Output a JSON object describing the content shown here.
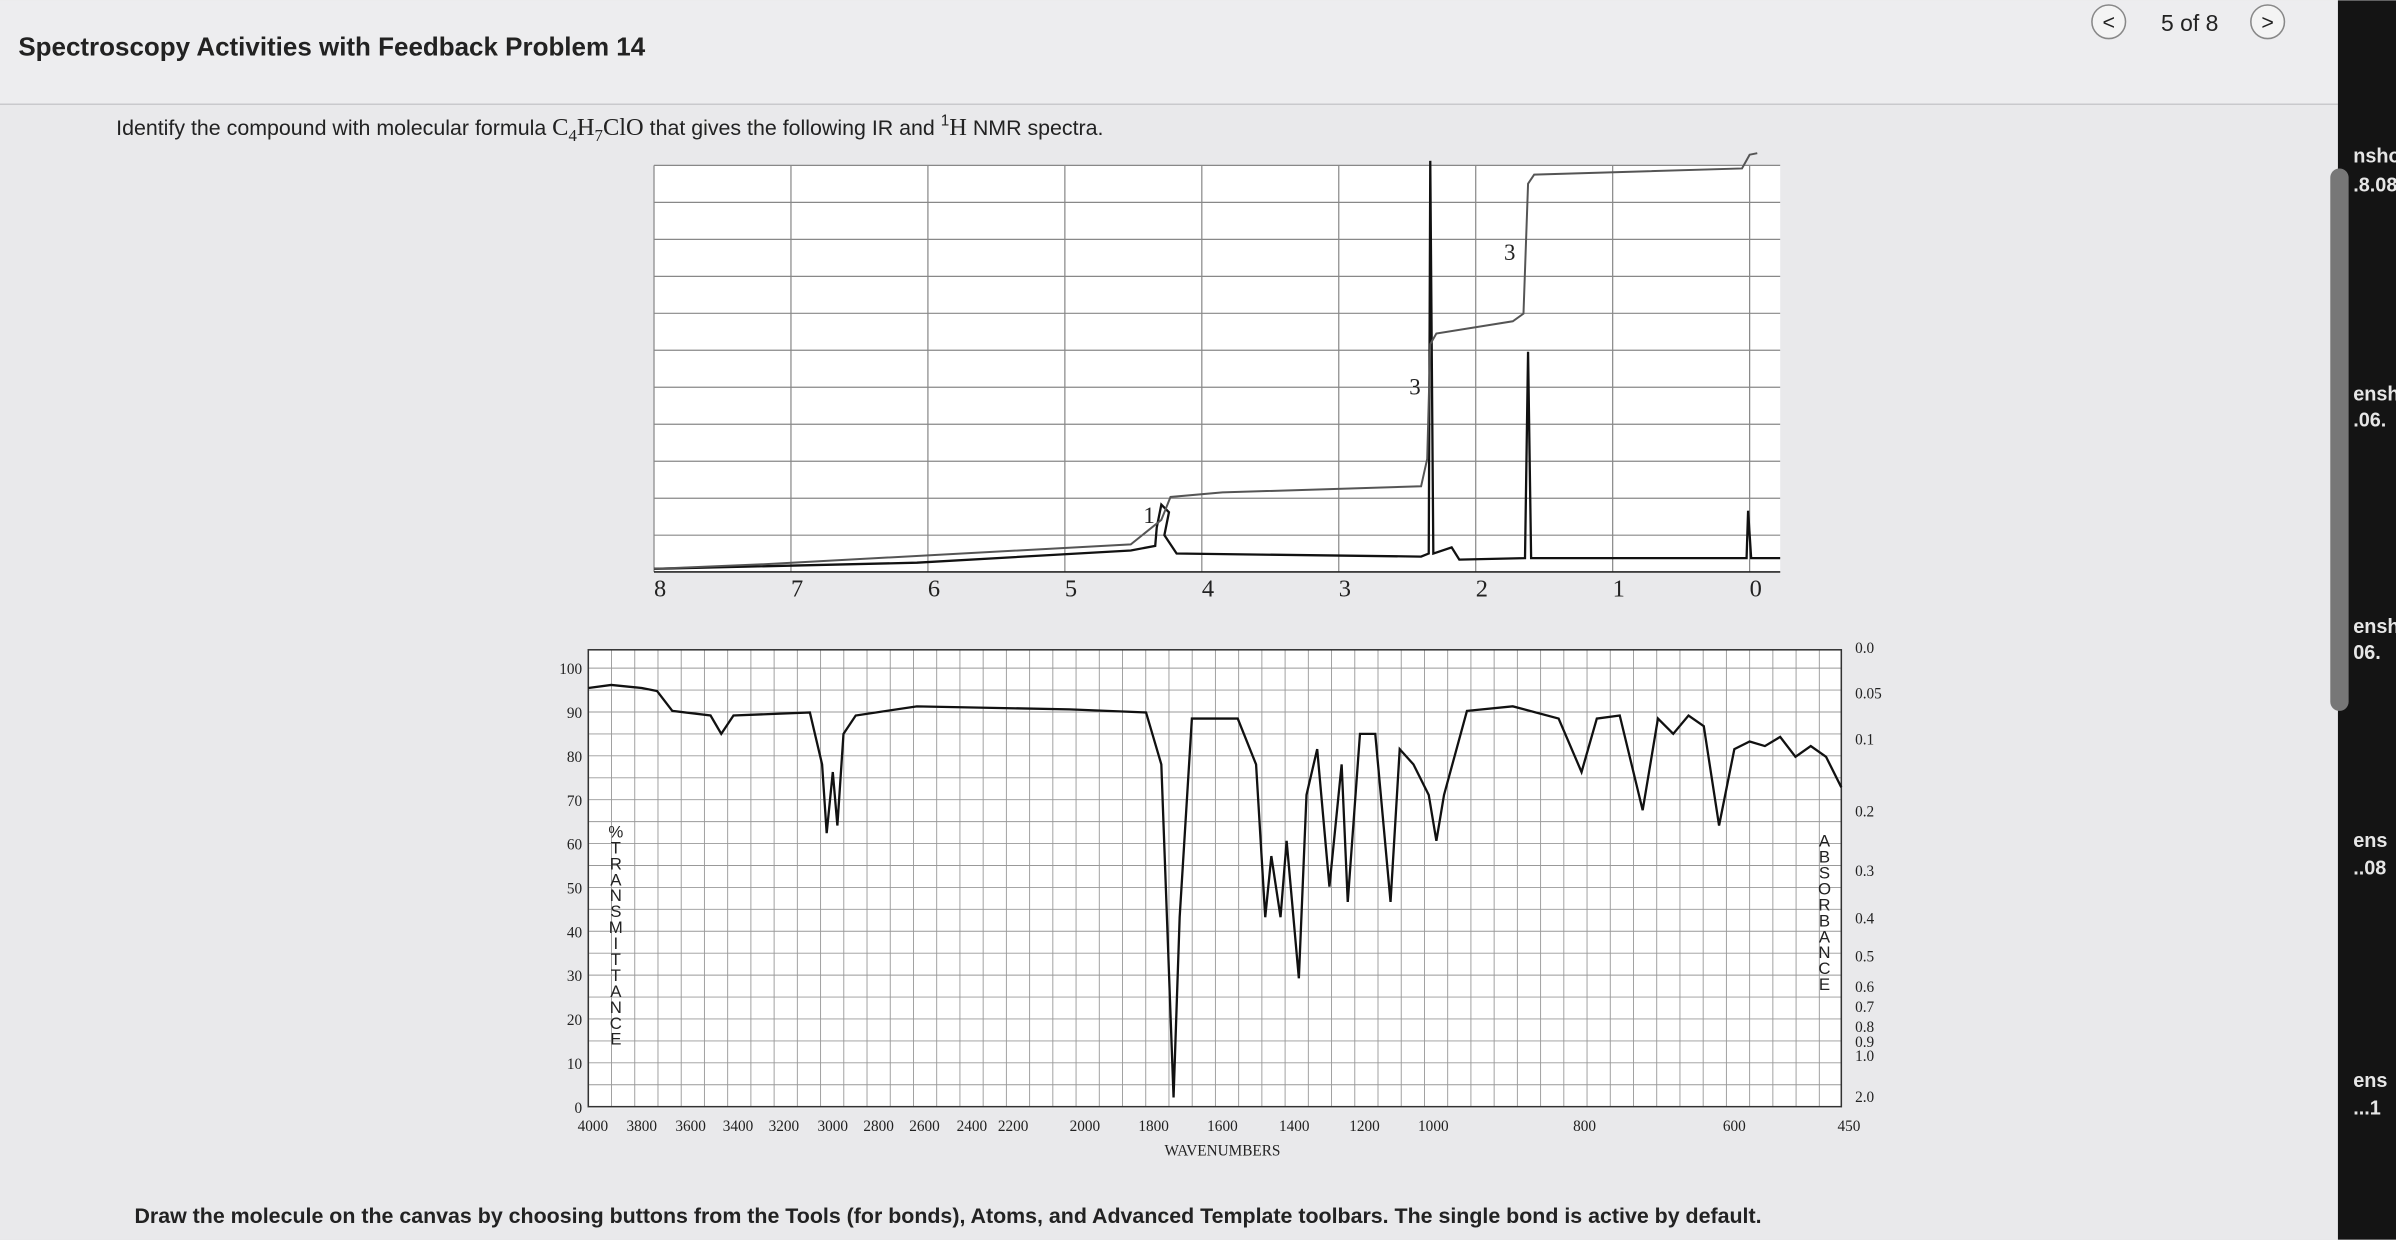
{
  "header": {
    "title": "Spectroscopy Activities with Feedback Problem 14",
    "nav": {
      "prev": "<",
      "position": "5 of 8",
      "next": ">"
    }
  },
  "question": {
    "prefix": "Identify the compound with molecular formula ",
    "formula": [
      "C",
      "4",
      "H",
      "7",
      "ClO"
    ],
    "middle": " that gives the following IR and ",
    "nucleus_mass": "1",
    "nucleus": "H",
    "suffix": " NMR spectra."
  },
  "nmr": {
    "x_ticks": [
      "8",
      "7",
      "6",
      "5",
      "4",
      "3",
      "2",
      "1",
      "0"
    ],
    "integrations": [
      "1",
      "3",
      "3"
    ]
  },
  "ir": {
    "left_ticks": [
      "100",
      "90",
      "80",
      "70",
      "60",
      "50",
      "40",
      "30",
      "20",
      "10",
      "0"
    ],
    "left_label": "%TRANSMITTANCE",
    "right_ticks": [
      "0.0",
      "0.05",
      "0.1",
      "0.2",
      "0.3",
      "0.4",
      "0.5",
      "0.6",
      "0.7",
      "0.8",
      "0.9",
      "1.0",
      "2.0"
    ],
    "right_label": "ABSORBANCE",
    "x_ticks": [
      "4000",
      "3800",
      "3600",
      "3400",
      "3200",
      "3000",
      "2800",
      "2600",
      "2400",
      "2200",
      "2000",
      "1800",
      "1600",
      "1400",
      "1200",
      "1000",
      "800",
      "600",
      "450"
    ],
    "x_label": "WAVENUMBERS"
  },
  "footer": {
    "instruction": "Draw the molecule on the canvas by choosing buttons from the Tools (for bonds), Atoms, and Advanced Template toolbars. The single bond is active by default."
  },
  "sidebar": {
    "labels": [
      "nshot",
      ".8.08",
      "ensh",
      ".06.",
      "ensh",
      "06.",
      "ens",
      "..08",
      "ens",
      "...1"
    ]
  }
}
